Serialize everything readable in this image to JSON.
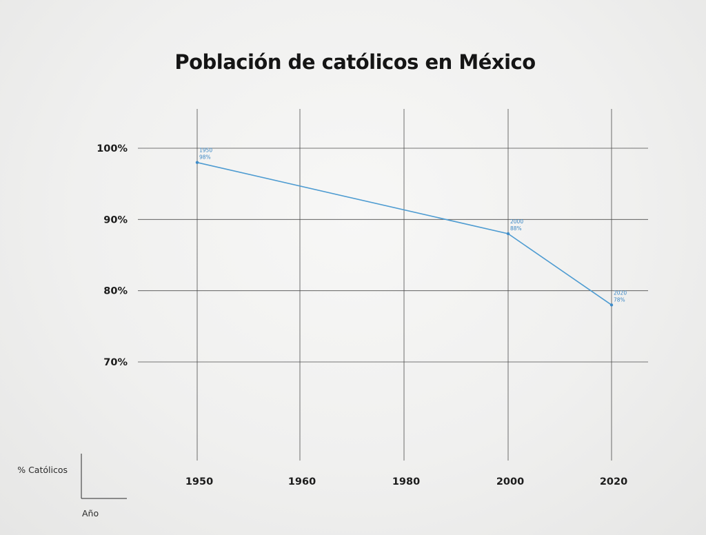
{
  "chart_data": {
    "type": "line",
    "title": "Población de católicos en México",
    "xlabel": "Año",
    "ylabel": "% Católicos",
    "x_categories": [
      "1950",
      "1960",
      "1980",
      "2000",
      "2020"
    ],
    "y_ticks": [
      100,
      90,
      80,
      70
    ],
    "y_tick_labels": [
      "100%",
      "90%",
      "80%",
      "70%"
    ],
    "ylim": [
      70,
      100
    ],
    "grid": true,
    "series": [
      {
        "color": "#4d9bd1",
        "points": [
          {
            "x": "1950",
            "y": 98,
            "label_year": "1950",
            "label_value": "98%"
          },
          {
            "x": "2000",
            "y": 88,
            "label_year": "2000",
            "label_value": "88%"
          },
          {
            "x": "2020",
            "y": 78,
            "label_year": "2020",
            "label_value": "78%"
          }
        ]
      }
    ]
  }
}
